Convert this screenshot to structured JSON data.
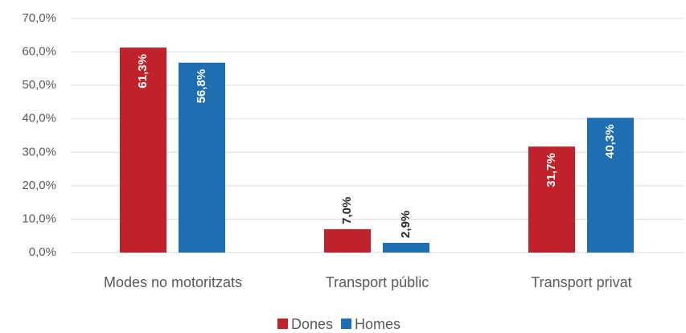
{
  "chart_data": {
    "type": "bar",
    "categories": [
      "Modes no motoritzats",
      "Transport públic",
      "Transport privat"
    ],
    "series": [
      {
        "name": "Dones",
        "color": "#c0222c",
        "values": [
          61.3,
          7.0,
          31.7
        ],
        "value_labels": [
          "61,3%",
          "7,0%",
          "31,7%"
        ]
      },
      {
        "name": "Homes",
        "color": "#1f6db3",
        "values": [
          56.8,
          2.9,
          40.3
        ],
        "value_labels": [
          "56,8%",
          "2,9%",
          "40,3%"
        ]
      }
    ],
    "ylim": [
      0,
      70
    ],
    "yticks": [
      {
        "value": 0,
        "label": "0,0%"
      },
      {
        "value": 10,
        "label": "10,0%"
      },
      {
        "value": 20,
        "label": "20,0%"
      },
      {
        "value": 30,
        "label": "30,0%"
      },
      {
        "value": 40,
        "label": "40,0%"
      },
      {
        "value": 50,
        "label": "50,0%"
      },
      {
        "value": 60,
        "label": "60,0%"
      },
      {
        "value": 70,
        "label": "70,0%"
      }
    ],
    "grid": true,
    "legend": "bottom"
  }
}
